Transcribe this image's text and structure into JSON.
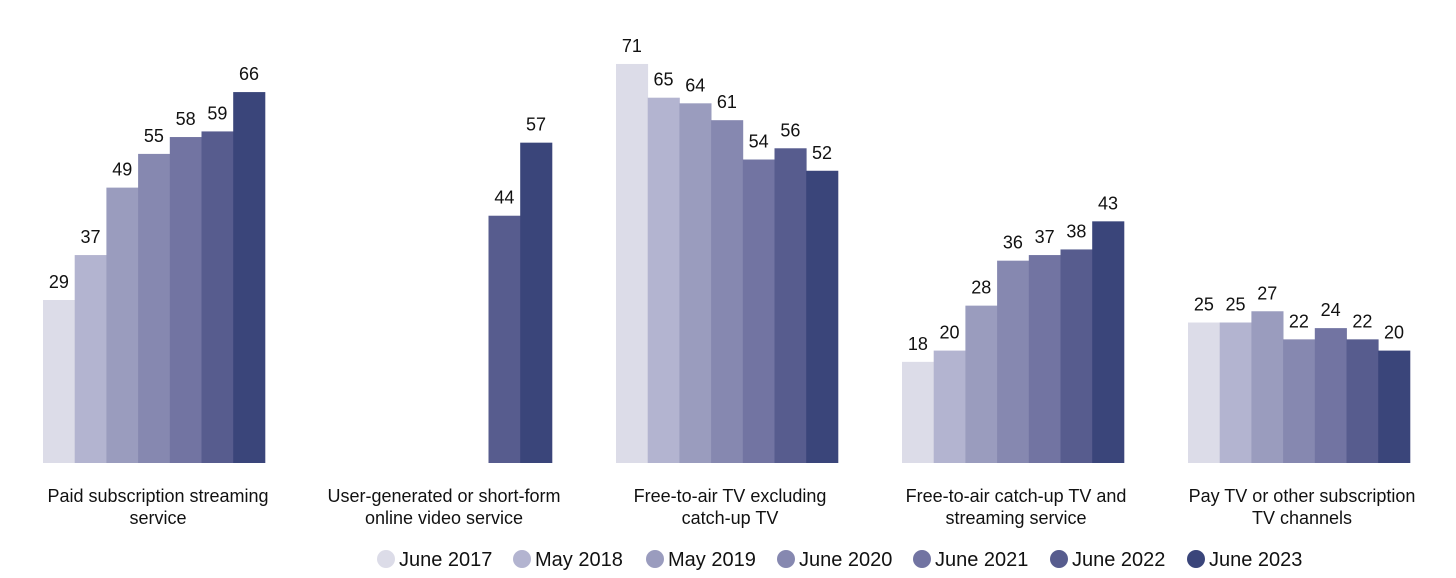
{
  "chart_data": {
    "type": "bar",
    "title": "",
    "xlabel": "",
    "ylabel": "",
    "ylim": [
      0,
      71
    ],
    "grid": false,
    "legend_position": "bottom",
    "categories": [
      [
        "Paid subscription streaming",
        "service"
      ],
      [
        "User-generated or short-form",
        "online video service"
      ],
      [
        "Free-to-air TV excluding",
        "catch-up TV"
      ],
      [
        "Free-to-air catch-up TV and",
        "streaming service"
      ],
      [
        "Pay TV or other subscription",
        "TV channels"
      ]
    ],
    "series": [
      {
        "name": "June 2017",
        "color": "#dcdce8",
        "values": [
          29,
          null,
          71,
          18,
          25
        ]
      },
      {
        "name": "May 2018",
        "color": "#b3b4d0",
        "values": [
          37,
          null,
          65,
          20,
          25
        ]
      },
      {
        "name": "May 2019",
        "color": "#9a9cbe",
        "values": [
          49,
          null,
          64,
          28,
          27
        ]
      },
      {
        "name": "June 2020",
        "color": "#8688b0",
        "values": [
          55,
          null,
          61,
          36,
          22
        ]
      },
      {
        "name": "June 2021",
        "color": "#7274a2",
        "values": [
          58,
          null,
          54,
          37,
          24
        ]
      },
      {
        "name": "June 2022",
        "color": "#575c8e",
        "values": [
          59,
          44,
          56,
          38,
          22
        ]
      },
      {
        "name": "June 2023",
        "color": "#3a457a",
        "values": [
          66,
          57,
          52,
          43,
          20
        ]
      }
    ]
  }
}
